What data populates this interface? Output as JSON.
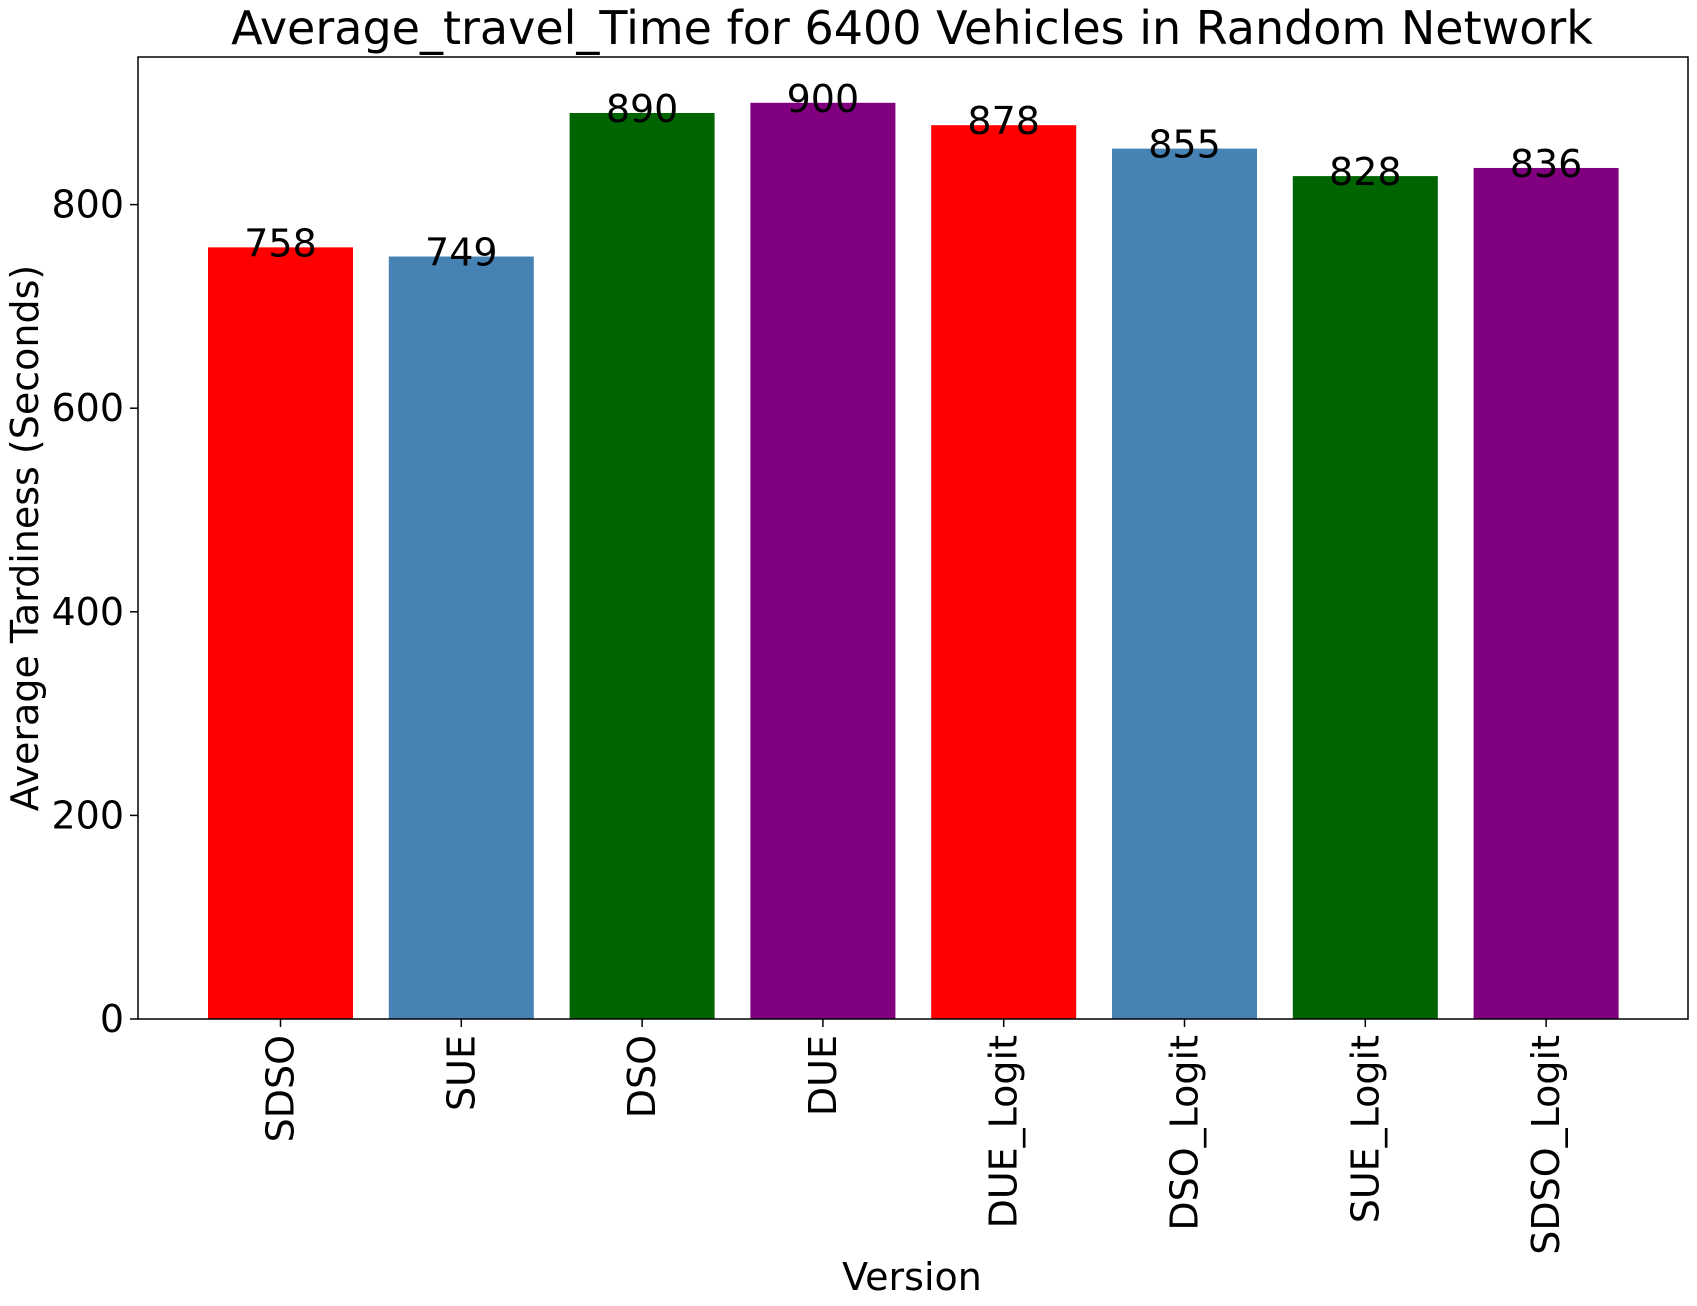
{
  "chart_data": {
    "type": "bar",
    "title": "Average_travel_Time for 6400 Vehicles in Random Network",
    "xlabel": "Version",
    "ylabel": "Average Tardiness (Seconds)",
    "categories": [
      "SDSO",
      "SUE",
      "DSO",
      "DUE",
      "DUE_Logit",
      "DSO_Logit",
      "SUE_Logit",
      "SDSO_Logit"
    ],
    "values": [
      758,
      749,
      890,
      900,
      878,
      855,
      828,
      836
    ],
    "bar_labels": [
      "758",
      "749",
      "890",
      "900",
      "878",
      "855",
      "828",
      "836"
    ],
    "colors": [
      "#ff0000",
      "#4682b4",
      "#006400",
      "#800080",
      "#ff0000",
      "#4682b4",
      "#006400",
      "#800080"
    ],
    "yticks": [
      0,
      200,
      400,
      600,
      800
    ],
    "ytick_labels": [
      "0",
      "200",
      "400",
      "600",
      "800"
    ],
    "ylim": [
      0,
      945
    ],
    "grid": false,
    "legend": false
  }
}
